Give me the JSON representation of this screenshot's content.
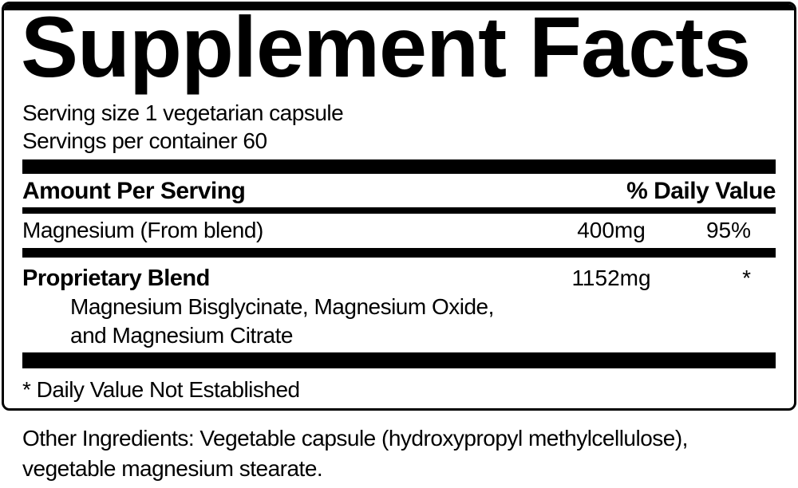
{
  "label": {
    "title": "Supplement Facts",
    "serving": {
      "size": "Serving size 1 vegetarian capsule",
      "per_container": "Servings per container 60"
    },
    "columns": {
      "amount_header": "Amount Per Serving",
      "dv_header": "% Daily Value"
    },
    "rows": [
      {
        "name": "Magnesium (From blend)",
        "amount": "400mg",
        "dv": "95%"
      },
      {
        "name": "Proprietary Blend",
        "amount": "1152mg",
        "dv": "*",
        "description_lines": [
          "Magnesium Bisglycinate, Magnesium Oxide,",
          "and Magnesium Citrate"
        ]
      }
    ],
    "footnote": "* Daily Value Not Established",
    "other_ingredients_lines": [
      "Other Ingredients: Vegetable capsule (hydroxypropyl methylcellulose),",
      "vegetable magnesium stearate."
    ]
  },
  "colors": {
    "ink": "#000000",
    "background": "#ffffff"
  }
}
